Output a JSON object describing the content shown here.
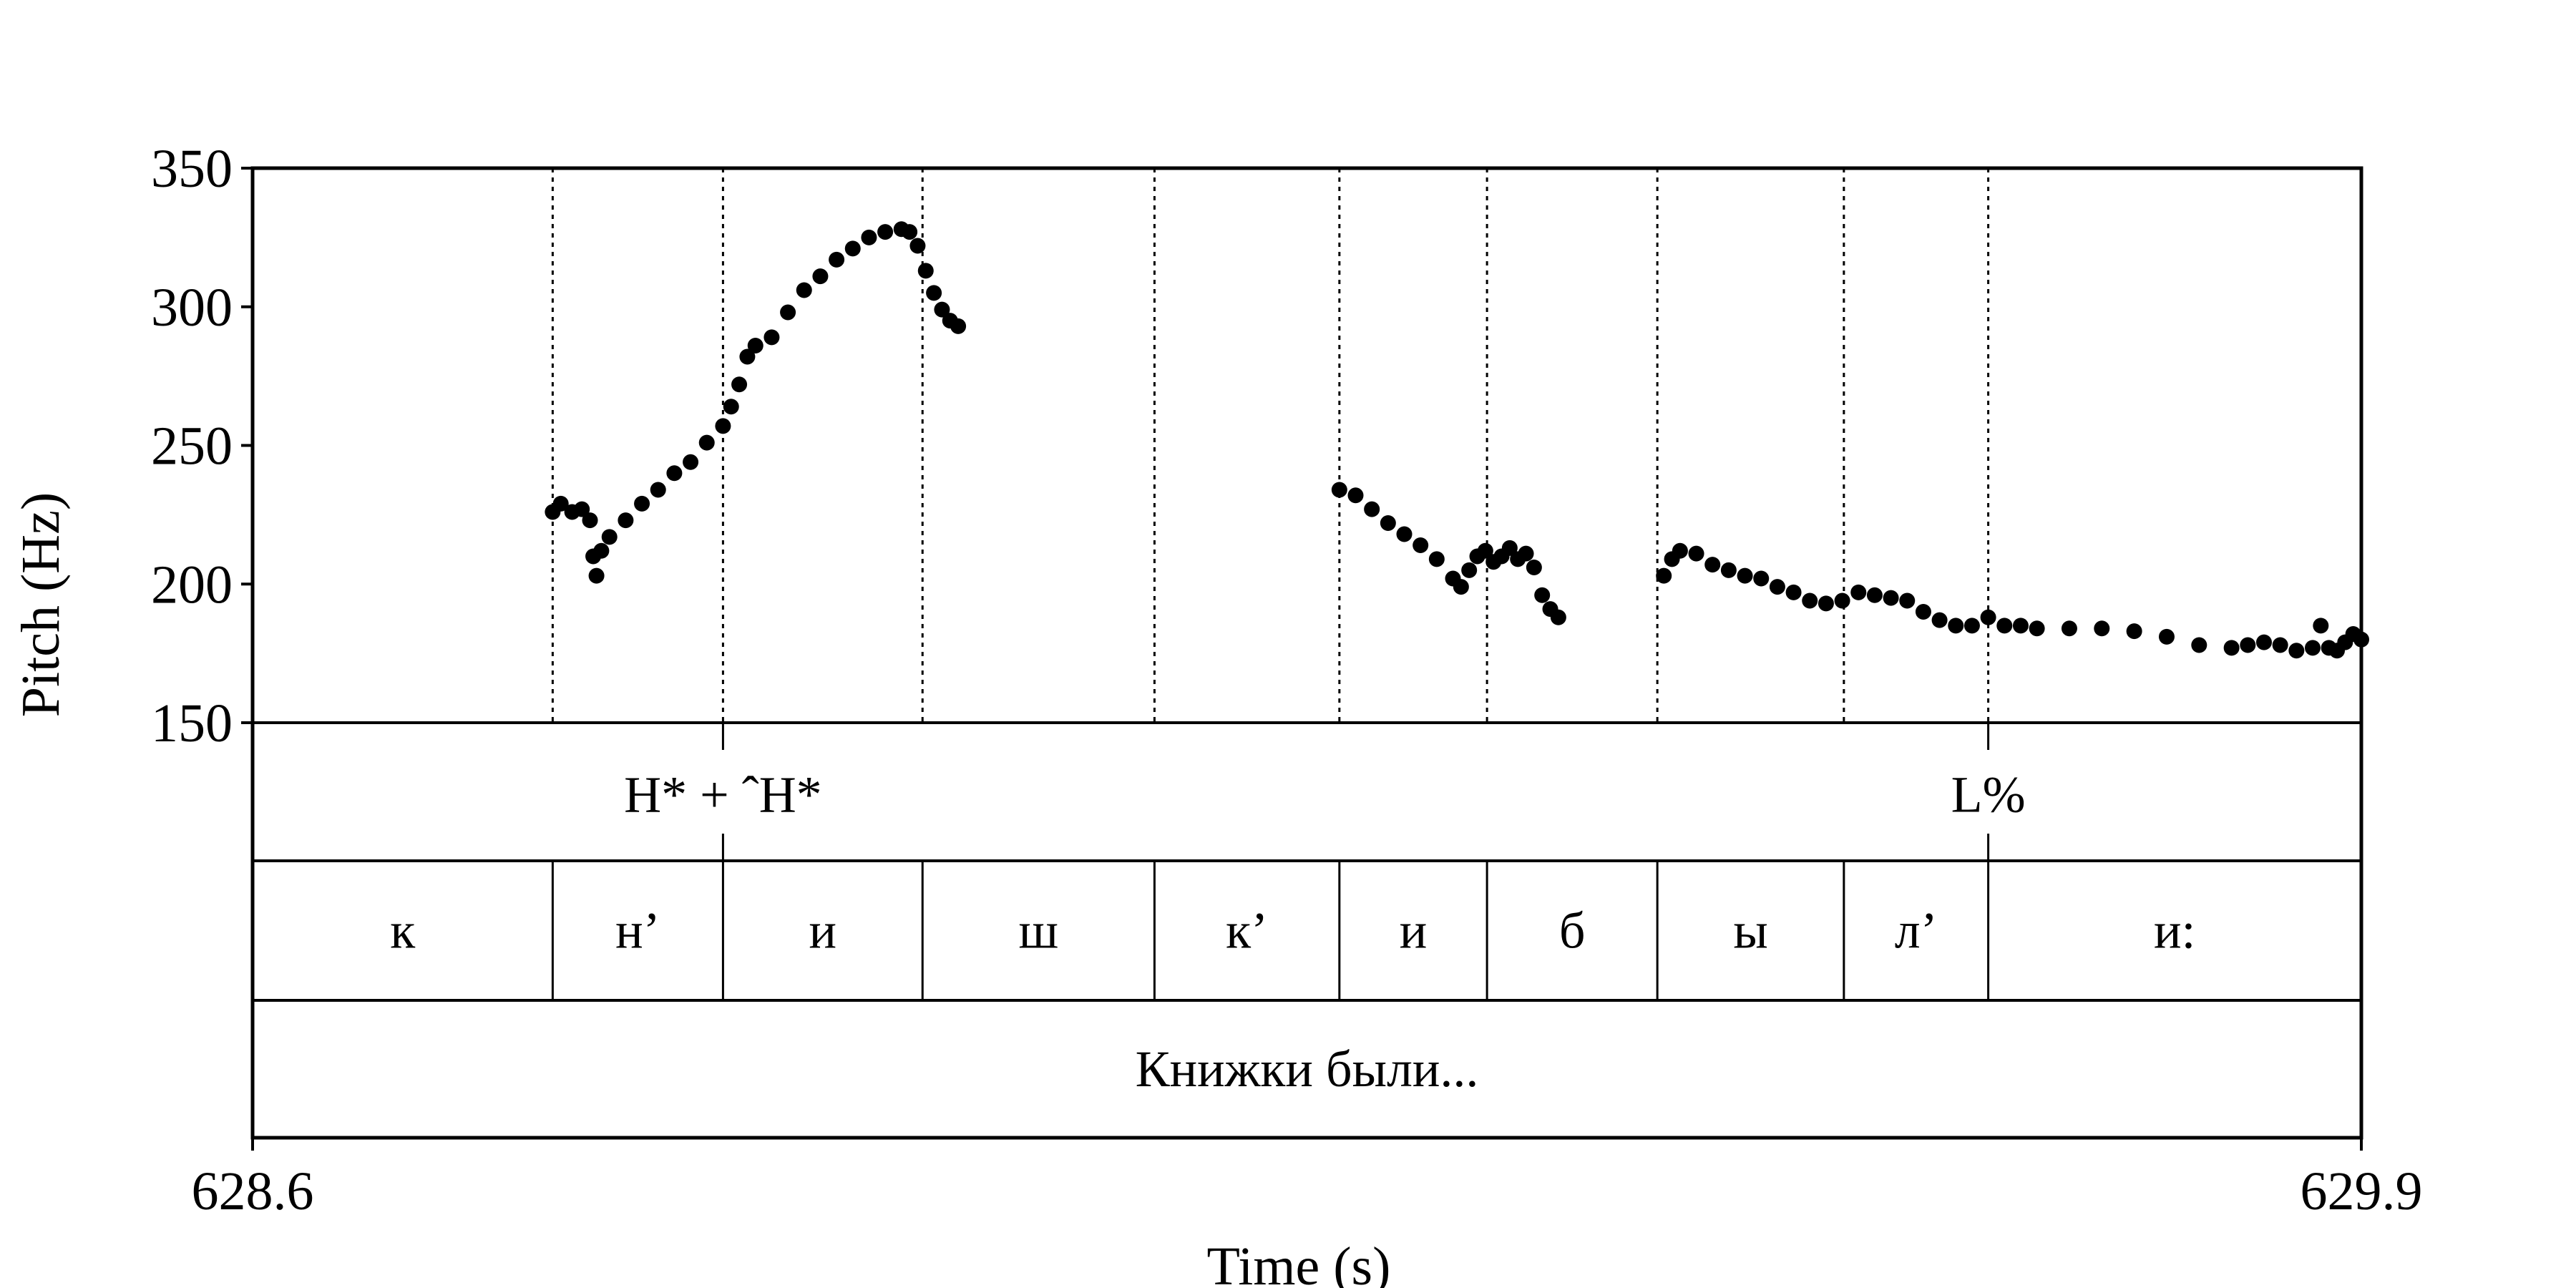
{
  "chart_data": {
    "type": "scatter",
    "title": "",
    "xlabel": "Time (s)",
    "ylabel": "Pitch (Hz)",
    "xlim": [
      628.6,
      629.9
    ],
    "ylim": [
      150,
      350
    ],
    "x_tick_labels": [
      "628.6",
      "629.9"
    ],
    "y_ticks": [
      150,
      200,
      250,
      300,
      350
    ],
    "y_tick_labels": [
      "150",
      "200",
      "250",
      "300",
      "350"
    ],
    "grid": false,
    "boundaries": [
      628.785,
      628.89,
      629.013,
      629.156,
      629.27,
      629.361,
      629.466,
      629.581,
      629.67
    ],
    "tiers": {
      "tones": [
        {
          "time": 628.89,
          "label": "H* + ˆH*"
        },
        {
          "time": 629.67,
          "label": "L%"
        }
      ],
      "segments": [
        {
          "start": 628.6,
          "end": 628.785,
          "label": "к"
        },
        {
          "start": 628.785,
          "end": 628.89,
          "label": "н’"
        },
        {
          "start": 628.89,
          "end": 629.013,
          "label": "и"
        },
        {
          "start": 629.013,
          "end": 629.156,
          "label": "ш"
        },
        {
          "start": 629.156,
          "end": 629.27,
          "label": "к’"
        },
        {
          "start": 629.27,
          "end": 629.361,
          "label": "и"
        },
        {
          "start": 629.361,
          "end": 629.466,
          "label": "б"
        },
        {
          "start": 629.466,
          "end": 629.581,
          "label": "ы"
        },
        {
          "start": 629.581,
          "end": 629.67,
          "label": "л’"
        },
        {
          "start": 629.67,
          "end": 629.9,
          "label": "и:"
        }
      ],
      "words": [
        {
          "start": 628.6,
          "end": 629.9,
          "label": "Книжки были..."
        }
      ]
    },
    "pitch_contours": [
      [
        [
          628.785,
          226
        ],
        [
          628.79,
          229
        ],
        [
          628.797,
          226
        ],
        [
          628.803,
          227
        ],
        [
          628.808,
          223
        ],
        [
          628.81,
          210
        ],
        [
          628.812,
          203
        ],
        [
          628.815,
          212
        ],
        [
          628.82,
          217
        ],
        [
          628.83,
          223
        ],
        [
          628.84,
          229
        ],
        [
          628.85,
          234
        ],
        [
          628.86,
          240
        ],
        [
          628.87,
          244
        ],
        [
          628.88,
          251
        ],
        [
          628.89,
          257
        ],
        [
          628.895,
          264
        ],
        [
          628.9,
          272
        ],
        [
          628.905,
          282
        ],
        [
          628.91,
          286
        ],
        [
          628.92,
          289
        ],
        [
          628.93,
          298
        ],
        [
          628.94,
          306
        ],
        [
          628.95,
          311
        ],
        [
          628.96,
          317
        ],
        [
          628.97,
          321
        ],
        [
          628.98,
          325
        ],
        [
          628.99,
          327
        ],
        [
          629.0,
          328
        ],
        [
          629.005,
          327
        ],
        [
          629.01,
          322
        ],
        [
          629.015,
          313
        ],
        [
          629.02,
          305
        ],
        [
          629.025,
          299
        ],
        [
          629.03,
          295
        ],
        [
          629.035,
          293
        ]
      ],
      [
        [
          629.27,
          234
        ],
        [
          629.28,
          232
        ],
        [
          629.29,
          227
        ],
        [
          629.3,
          222
        ],
        [
          629.31,
          218
        ],
        [
          629.32,
          214
        ],
        [
          629.33,
          209
        ],
        [
          629.34,
          202
        ],
        [
          629.345,
          199
        ],
        [
          629.35,
          205
        ],
        [
          629.355,
          210
        ],
        [
          629.36,
          212
        ],
        [
          629.365,
          208
        ],
        [
          629.37,
          210
        ],
        [
          629.375,
          213
        ],
        [
          629.38,
          209
        ],
        [
          629.385,
          211
        ],
        [
          629.39,
          206
        ],
        [
          629.395,
          196
        ],
        [
          629.4,
          191
        ],
        [
          629.405,
          188
        ]
      ],
      [
        [
          629.47,
          203
        ],
        [
          629.475,
          209
        ],
        [
          629.48,
          212
        ],
        [
          629.49,
          211
        ],
        [
          629.5,
          207
        ],
        [
          629.51,
          205
        ],
        [
          629.52,
          203
        ],
        [
          629.53,
          202
        ],
        [
          629.54,
          199
        ],
        [
          629.55,
          197
        ],
        [
          629.56,
          194
        ],
        [
          629.57,
          193
        ],
        [
          629.58,
          194
        ],
        [
          629.59,
          197
        ],
        [
          629.6,
          196
        ],
        [
          629.61,
          195
        ],
        [
          629.62,
          194
        ],
        [
          629.63,
          190
        ],
        [
          629.64,
          187
        ],
        [
          629.65,
          185
        ],
        [
          629.66,
          185
        ],
        [
          629.67,
          188
        ],
        [
          629.68,
          185
        ],
        [
          629.69,
          185
        ],
        [
          629.7,
          184
        ],
        [
          629.72,
          184
        ],
        [
          629.74,
          184
        ],
        [
          629.76,
          183
        ],
        [
          629.78,
          181
        ],
        [
          629.8,
          178
        ],
        [
          629.82,
          177
        ],
        [
          629.83,
          178
        ],
        [
          629.84,
          179
        ],
        [
          629.85,
          178
        ],
        [
          629.86,
          176
        ],
        [
          629.87,
          177
        ],
        [
          629.875,
          185
        ],
        [
          629.88,
          177
        ],
        [
          629.885,
          176
        ],
        [
          629.89,
          179
        ],
        [
          629.895,
          182
        ],
        [
          629.9,
          180
        ]
      ]
    ]
  }
}
